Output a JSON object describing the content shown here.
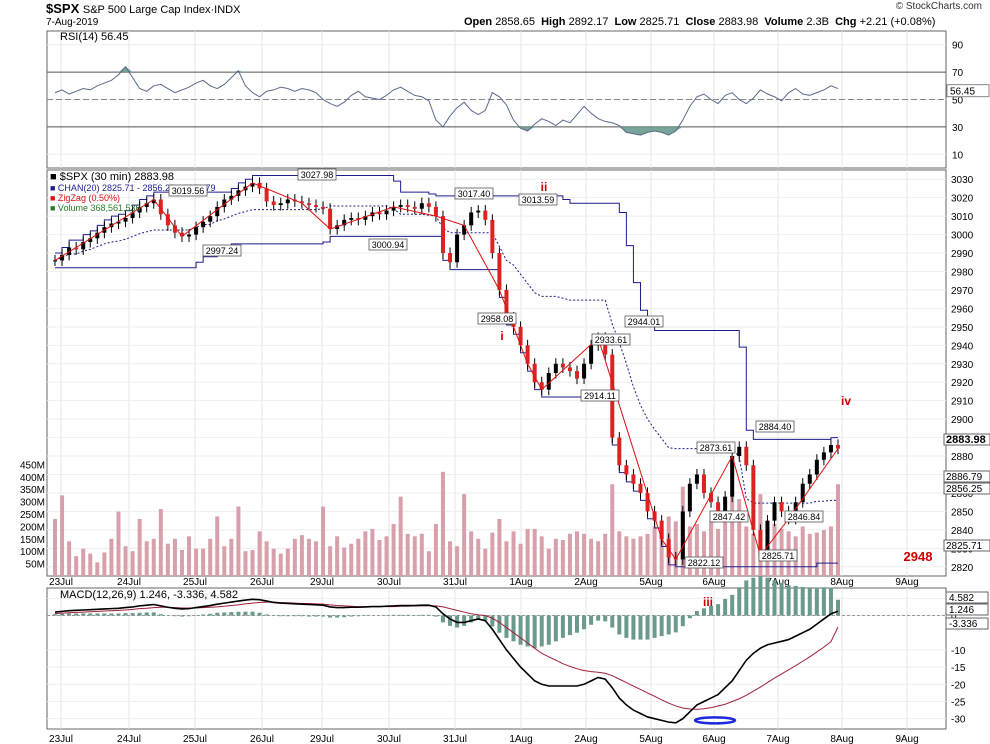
{
  "header": {
    "symbol": "$SPX",
    "name": "S&P 500 Large Cap Index",
    "exchange": "INDX",
    "date": "7-Aug-2019",
    "open_label": "Open",
    "open": "2858.65",
    "high_label": "High",
    "high": "2892.17",
    "low_label": "Low",
    "low": "2825.71",
    "close_label": "Close",
    "close": "2883.98",
    "volume_label": "Volume",
    "volume": "2.3B",
    "chg_label": "Chg",
    "chg": "+2.21 (+0.08%)",
    "credit": "© StockCharts.com"
  },
  "colors": {
    "price": "#1c1c8c",
    "zigzag": "#dd1111",
    "volume": "#d8a0aa",
    "rsi_fill": "#6a9a8e",
    "annot": "#cc0000",
    "macd": "#000000",
    "signal": "#a0203a",
    "hist": "#6a9a8e"
  },
  "chart_data": [
    {
      "type": "line",
      "panel": "RSI",
      "title": "RSI(14) 56.45",
      "ylim": [
        0,
        100
      ],
      "yticks": [
        10,
        30,
        50,
        70,
        90
      ],
      "levels": [
        30,
        50,
        70
      ],
      "right_labels": [
        "56.45"
      ],
      "series": [
        {
          "name": "RSI(14)",
          "values": [
            55,
            57,
            54,
            56,
            58,
            57,
            60,
            62,
            64,
            68,
            74,
            66,
            58,
            56,
            60,
            61,
            58,
            55,
            57,
            59,
            62,
            64,
            60,
            58,
            61,
            66,
            71,
            60,
            55,
            52,
            56,
            57,
            59,
            58,
            56,
            58,
            57,
            55,
            50,
            47,
            45,
            48,
            53,
            56,
            52,
            51,
            50,
            53,
            57,
            59,
            56,
            53,
            52,
            49,
            35,
            30,
            38,
            44,
            48,
            42,
            39,
            42,
            55,
            52,
            46,
            35,
            29,
            27,
            32,
            36,
            34,
            31,
            35,
            33,
            39,
            45,
            40,
            36,
            34,
            33,
            31,
            26,
            25,
            24,
            26,
            27,
            26,
            24,
            27,
            35,
            45,
            52,
            54,
            50,
            47,
            53,
            55,
            50,
            47,
            51,
            57,
            54,
            52,
            49,
            55,
            58,
            54,
            53,
            55,
            57,
            60,
            58
          ]
        }
      ]
    },
    {
      "type": "bar",
      "panel": "Price",
      "title": "$SPX (30 min) 2883.98",
      "legend": [
        "CHAN(20) 2825.71 - 2856.25 - 2886.79",
        "ZigZag (0.50%)",
        "Volume 368,561,536"
      ],
      "ylim": [
        2815,
        3035
      ],
      "yticks": [
        2820,
        2830,
        2840,
        2850,
        2860,
        2870,
        2880,
        2890,
        2900,
        2910,
        2920,
        2930,
        2940,
        2950,
        2960,
        2970,
        2980,
        2990,
        3000,
        3010,
        3020,
        3030
      ],
      "right_labels": [
        "2883.98",
        "2886.79",
        "2856.25",
        "2825.71"
      ],
      "x_labels": [
        "23Jul",
        "24Jul",
        "25Jul",
        "26Jul",
        "29Jul",
        "30Jul",
        "31Jul",
        "1Aug",
        "2Aug",
        "5Aug",
        "6Aug",
        "7Aug",
        "8Aug",
        "9Aug"
      ],
      "close": [
        2986,
        2989,
        2993,
        2992,
        2996,
        2998,
        3001,
        3004,
        3006,
        3007,
        3009,
        3012,
        3015,
        3017,
        3019,
        3011,
        3005,
        3001,
        2999,
        3000,
        3004,
        3007,
        3010,
        3015,
        3019,
        3021,
        3024,
        3026,
        3028,
        3025,
        3018,
        3016,
        3017,
        3019,
        3018,
        3017,
        3016,
        3015,
        3014,
        3003,
        3005,
        3008,
        3009,
        3008,
        3010,
        3012,
        3011,
        3013,
        3015,
        3016,
        3015,
        3014,
        3017,
        3015,
        3010,
        2990,
        2985,
        3000,
        3005,
        3012,
        3013,
        3008,
        2990,
        2970,
        2955,
        2950,
        2940,
        2930,
        2920,
        2916,
        2925,
        2930,
        2928,
        2926,
        2922,
        2930,
        2940,
        2944,
        2935,
        2890,
        2875,
        2870,
        2865,
        2860,
        2850,
        2845,
        2835,
        2825,
        2824,
        2850,
        2865,
        2870,
        2860,
        2855,
        2850,
        2858,
        2880,
        2885,
        2875,
        2840,
        2826,
        2845,
        2855,
        2850,
        2846,
        2855,
        2865,
        2870,
        2878,
        2882,
        2886,
        2884
      ],
      "vol_ticks": [
        "450M",
        "400M",
        "350M",
        "300M",
        "250M",
        "200M",
        "150M",
        "100M",
        "50M"
      ],
      "volume": [
        230,
        325,
        140,
        80,
        110,
        90,
        55,
        95,
        150,
        260,
        120,
        100,
        230,
        140,
        150,
        270,
        130,
        150,
        105,
        160,
        110,
        110,
        150,
        240,
        120,
        150,
        280,
        100,
        105,
        180,
        140,
        110,
        90,
        110,
        150,
        165,
        150,
        140,
        280,
        120,
        160,
        115,
        130,
        150,
        180,
        190,
        145,
        160,
        210,
        320,
        170,
        160,
        170,
        100,
        210,
        420,
        140,
        120,
        330,
        180,
        150,
        110,
        175,
        230,
        140,
        180,
        130,
        190,
        190,
        160,
        110,
        150,
        145,
        170,
        180,
        170,
        150,
        140,
        170,
        370,
        180,
        160,
        150,
        160,
        170,
        200,
        190,
        240,
        220,
        360,
        200,
        210,
        180,
        220,
        190,
        260,
        320,
        310,
        200,
        170,
        330,
        200,
        210,
        190,
        180,
        160,
        200,
        170,
        175,
        185,
        200,
        370
      ],
      "annotations": [
        {
          "text": "i",
          "kind": "wave"
        },
        {
          "text": "ii",
          "kind": "wave"
        },
        {
          "text": "iv",
          "kind": "wave"
        },
        {
          "text": "2948",
          "kind": "target"
        },
        {
          "text": "3027.98"
        },
        {
          "text": "3019.56"
        },
        {
          "text": "2997.24"
        },
        {
          "text": "3000.94"
        },
        {
          "text": "3017.40"
        },
        {
          "text": "3013.59"
        },
        {
          "text": "2958.08"
        },
        {
          "text": "2944.01"
        },
        {
          "text": "2933.61"
        },
        {
          "text": "2914.11"
        },
        {
          "text": "2884.40"
        },
        {
          "text": "2873.61"
        },
        {
          "text": "2847.42"
        },
        {
          "text": "2846.84"
        },
        {
          "text": "2822.12"
        },
        {
          "text": "2825.71"
        }
      ]
    },
    {
      "type": "line",
      "panel": "MACD",
      "title": "MACD(12,26,9) 1.246, -3.336, 4.582",
      "ylim": [
        -33,
        8
      ],
      "yticks": [
        5,
        0,
        -10,
        -15,
        -20,
        -25,
        -30
      ],
      "right_labels": [
        "4.582",
        "1.246",
        "-3.336"
      ],
      "wave_label": "iii",
      "series": [
        {
          "name": "MACD",
          "values": [
            1,
            1.2,
            1.4,
            1.5,
            1.6,
            1.7,
            1.8,
            1.9,
            2,
            2.1,
            2.3,
            2.5,
            2.8,
            3,
            3.2,
            2.8,
            2.4,
            2.1,
            1.9,
            2,
            2.3,
            2.6,
            2.9,
            3.3,
            3.6,
            3.9,
            4.2,
            4.5,
            4.7,
            4.6,
            4.2,
            3.8,
            3.6,
            3.5,
            3.4,
            3.3,
            3.2,
            3.1,
            3,
            2.5,
            2.3,
            2.3,
            2.4,
            2.4,
            2.5,
            2.6,
            2.6,
            2.7,
            2.8,
            2.9,
            2.9,
            2.9,
            3,
            3,
            2.5,
            0.5,
            -1,
            -2,
            -2,
            -1.5,
            -1,
            -1.5,
            -4,
            -7,
            -10,
            -12.5,
            -15,
            -17,
            -19,
            -20,
            -20.5,
            -20.5,
            -20.5,
            -20.5,
            -20.5,
            -20,
            -19,
            -18,
            -18.5,
            -21,
            -24,
            -26,
            -27.5,
            -28.5,
            -29.5,
            -30,
            -30.5,
            -31,
            -31.2,
            -30,
            -28,
            -26,
            -25,
            -24,
            -23,
            -21,
            -19,
            -16,
            -13,
            -11,
            -9.5,
            -8.5,
            -8,
            -7.5,
            -7,
            -6,
            -5,
            -4,
            -2.5,
            -1,
            0.5,
            1.246
          ]
        },
        {
          "name": "Signal",
          "values": [
            0.6,
            0.7,
            0.8,
            0.9,
            1,
            1.1,
            1.2,
            1.3,
            1.4,
            1.5,
            1.6,
            1.8,
            2,
            2.1,
            2.3,
            2.4,
            2.4,
            2.3,
            2.2,
            2.2,
            2.2,
            2.3,
            2.4,
            2.5,
            2.7,
            2.9,
            3.1,
            3.4,
            3.6,
            3.8,
            3.9,
            3.9,
            3.8,
            3.7,
            3.6,
            3.5,
            3.5,
            3.4,
            3.3,
            3.1,
            2.9,
            2.8,
            2.7,
            2.6,
            2.6,
            2.6,
            2.6,
            2.6,
            2.6,
            2.7,
            2.7,
            2.8,
            2.8,
            2.8,
            2.8,
            2.5,
            2,
            1.5,
            1,
            0.5,
            0.2,
            0,
            -0.8,
            -2,
            -3.5,
            -5,
            -6.5,
            -8,
            -9.5,
            -11,
            -12,
            -13,
            -14,
            -14.8,
            -15.5,
            -16,
            -16.3,
            -16.5,
            -16.8,
            -17.5,
            -18.5,
            -19.5,
            -20.5,
            -21.5,
            -22.5,
            -23.5,
            -24.5,
            -25.5,
            -26.3,
            -26.9,
            -27.2,
            -27.3,
            -27.1,
            -26.8,
            -26.3,
            -25.8,
            -25,
            -24.2,
            -23.2,
            -22,
            -20.8,
            -19.5,
            -18.2,
            -17,
            -15.8,
            -14.6,
            -13.3,
            -12,
            -10.6,
            -9.2,
            -7.6,
            -3.336
          ]
        }
      ]
    }
  ]
}
